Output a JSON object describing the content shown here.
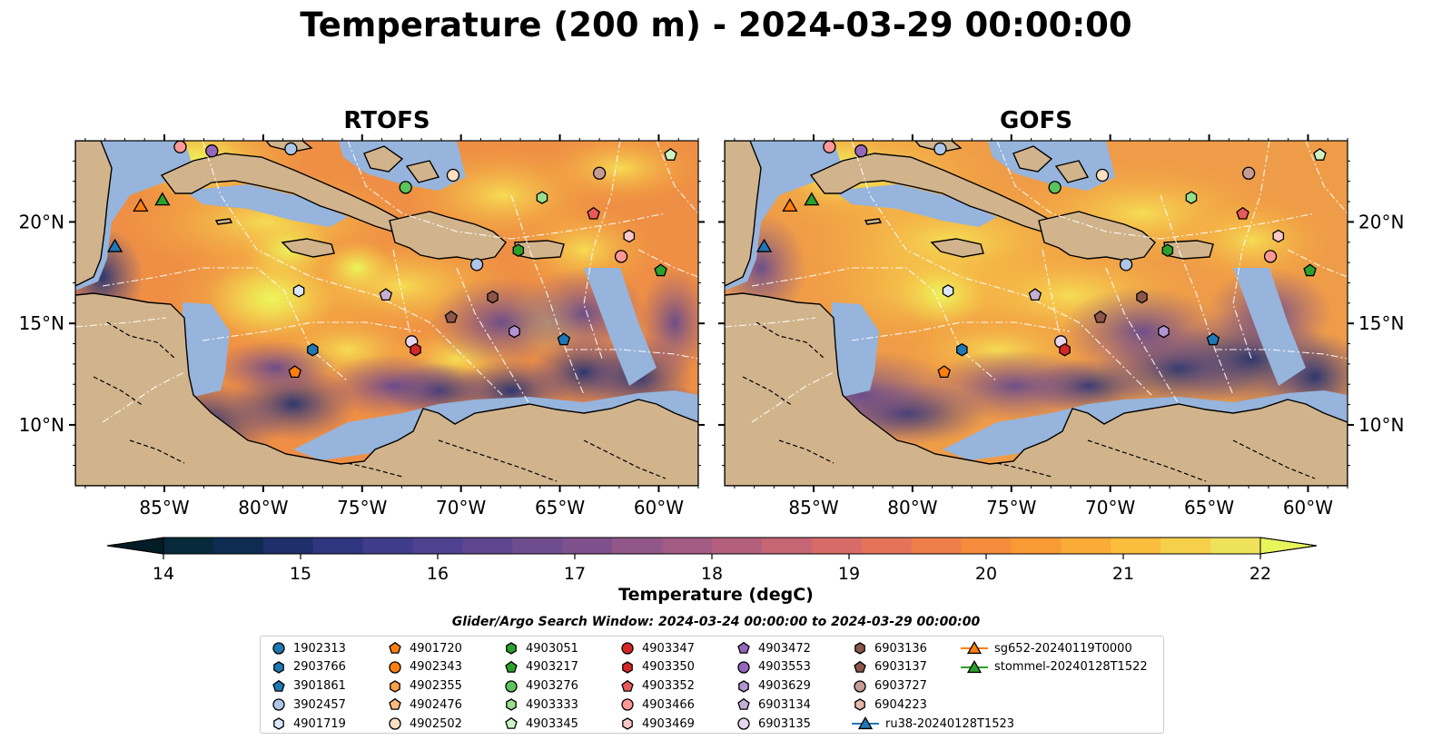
{
  "title": "Temperature (200 m) - 2024-03-29 00:00:00",
  "panels": [
    {
      "name": "rtofs",
      "title": "RTOFS"
    },
    {
      "name": "gofs",
      "title": "GOFS"
    }
  ],
  "map": {
    "lon_range": [
      -89.5,
      -58.0
    ],
    "lat_range": [
      7.0,
      24.0
    ],
    "lon_ticks": [
      "85°W",
      "80°W",
      "75°W",
      "70°W",
      "65°W",
      "60°W"
    ],
    "lat_ticks": [
      "20°N",
      "15°N",
      "10°N"
    ],
    "colors": {
      "land": "#d2b48c",
      "shelf": "#96b4dc",
      "deep_cold": "#0a2a3a",
      "border": "#000000",
      "eez": "#ffffff"
    }
  },
  "colorbar": {
    "min": 14,
    "max": 22,
    "step": 0.5,
    "ticks": [
      "14",
      "15",
      "16",
      "17",
      "18",
      "19",
      "20",
      "21",
      "22"
    ],
    "label": "Temperature (degC)",
    "colors": [
      "#062a3a",
      "#0e2c52",
      "#1f2f6b",
      "#303580",
      "#403c8c",
      "#4e4190",
      "#5f4690",
      "#6f4c8e",
      "#7f518c",
      "#905788",
      "#a25b82",
      "#b4607c",
      "#c66574",
      "#d76b68",
      "#e4735a",
      "#ee7e4a",
      "#f58b3c",
      "#f99a35",
      "#fbab37",
      "#fbbd3d",
      "#f6d04a",
      "#eee25a"
    ],
    "under_color": "#031c26",
    "over_color": "#e8f65c"
  },
  "search_window": "Glider/Argo Search Window: 2024-03-24 00:00:00 to 2024-03-29 00:00:00",
  "legend": [
    {
      "label": "1902313",
      "marker": "circle",
      "color": "#1f77b4"
    },
    {
      "label": "2903766",
      "marker": "hexagon",
      "color": "#1f77b4"
    },
    {
      "label": "3901861",
      "marker": "pentagon",
      "color": "#1f77b4"
    },
    {
      "label": "3902457",
      "marker": "circle",
      "color": "#aec7e8"
    },
    {
      "label": "4901719",
      "marker": "hexagon",
      "color": "#dbe8f8"
    },
    {
      "label": "4901720",
      "marker": "pentagon",
      "color": "#ff7f0e"
    },
    {
      "label": "4902343",
      "marker": "circle",
      "color": "#ff7f0e"
    },
    {
      "label": "4902355",
      "marker": "hexagon",
      "color": "#ffa04a"
    },
    {
      "label": "4902476",
      "marker": "pentagon",
      "color": "#ffbb78"
    },
    {
      "label": "4902502",
      "marker": "circle",
      "color": "#ffe0c0"
    },
    {
      "label": "4903051",
      "marker": "hexagon",
      "color": "#2ca02c"
    },
    {
      "label": "4903217",
      "marker": "pentagon",
      "color": "#2ca02c"
    },
    {
      "label": "4903276",
      "marker": "circle",
      "color": "#5cc45c"
    },
    {
      "label": "4903333",
      "marker": "hexagon",
      "color": "#98df8a"
    },
    {
      "label": "4903345",
      "marker": "pentagon",
      "color": "#cdf5c4"
    },
    {
      "label": "4903347",
      "marker": "circle",
      "color": "#d62728"
    },
    {
      "label": "4903350",
      "marker": "hexagon",
      "color": "#d62728"
    },
    {
      "label": "4903352",
      "marker": "pentagon",
      "color": "#e8595a"
    },
    {
      "label": "4903466",
      "marker": "circle",
      "color": "#ff9896"
    },
    {
      "label": "4903469",
      "marker": "hexagon",
      "color": "#ffc8c6"
    },
    {
      "label": "4903472",
      "marker": "pentagon",
      "color": "#9467bd"
    },
    {
      "label": "4903553",
      "marker": "circle",
      "color": "#9467bd"
    },
    {
      "label": "4903629",
      "marker": "hexagon",
      "color": "#b294d4"
    },
    {
      "label": "6903134",
      "marker": "pentagon",
      "color": "#c5b0d5"
    },
    {
      "label": "6903135",
      "marker": "circle",
      "color": "#e6d6f0"
    },
    {
      "label": "6903136",
      "marker": "hexagon",
      "color": "#8c564b"
    },
    {
      "label": "6903137",
      "marker": "pentagon",
      "color": "#8c564b"
    },
    {
      "label": "6903727",
      "marker": "circle",
      "color": "#c49c94"
    },
    {
      "label": "6904223",
      "marker": "hexagon",
      "color": "#e8b8a8"
    },
    {
      "label": "ru38-20240128T1523",
      "marker": "triangle-line",
      "color": "#1f77b4"
    },
    {
      "label": "sg652-20240119T0000",
      "marker": "triangle-line",
      "color": "#ff7f0e"
    },
    {
      "label": "stommel-20240128T1522",
      "marker": "triangle-line",
      "color": "#2ca02c"
    }
  ],
  "floats": [
    {
      "id": "4903466",
      "lon": -84.2,
      "lat": 23.7
    },
    {
      "id": "4903553",
      "lon": -82.6,
      "lat": 23.5
    },
    {
      "id": "3902457",
      "lon": -78.6,
      "lat": 23.6
    },
    {
      "id": "4902502",
      "lon": -70.4,
      "lat": 22.3
    },
    {
      "id": "4903276",
      "lon": -72.8,
      "lat": 21.7
    },
    {
      "id": "6903727",
      "lon": -63.0,
      "lat": 22.4
    },
    {
      "id": "4903345",
      "lon": -59.4,
      "lat": 23.3
    },
    {
      "id": "4903333",
      "lon": -65.9,
      "lat": 21.2
    },
    {
      "id": "4903352",
      "lon": -63.3,
      "lat": 20.4
    },
    {
      "id": "4903051",
      "lon": -67.1,
      "lat": 18.6
    },
    {
      "id": "4903469",
      "lon": -61.5,
      "lat": 19.3
    },
    {
      "id": "4903466",
      "lon": -61.9,
      "lat": 18.3
    },
    {
      "id": "3902457",
      "lon": -69.2,
      "lat": 17.9
    },
    {
      "id": "4903217",
      "lon": -59.9,
      "lat": 17.6
    },
    {
      "id": "4901719",
      "lon": -78.2,
      "lat": 16.6
    },
    {
      "id": "6903134",
      "lon": -73.8,
      "lat": 16.4
    },
    {
      "id": "6903136",
      "lon": -68.4,
      "lat": 16.3
    },
    {
      "id": "6903137",
      "lon": -70.5,
      "lat": 15.3
    },
    {
      "id": "4903629",
      "lon": -67.3,
      "lat": 14.6
    },
    {
      "id": "3901861",
      "lon": -64.8,
      "lat": 14.2
    },
    {
      "id": "6903135",
      "lon": -72.5,
      "lat": 14.1
    },
    {
      "id": "4903350",
      "lon": -72.3,
      "lat": 13.7
    },
    {
      "id": "2903766",
      "lon": -77.5,
      "lat": 13.7
    },
    {
      "id": "4901720",
      "lon": -78.4,
      "lat": 12.6
    }
  ],
  "gliders": [
    {
      "id": "ru38-20240128T1523",
      "lon": -87.5,
      "lat": 18.8
    },
    {
      "id": "sg652-20240119T0000",
      "lon": -86.2,
      "lat": 20.8
    },
    {
      "id": "stommel-20240128T1522",
      "lon": -85.1,
      "lat": 21.1
    }
  ]
}
